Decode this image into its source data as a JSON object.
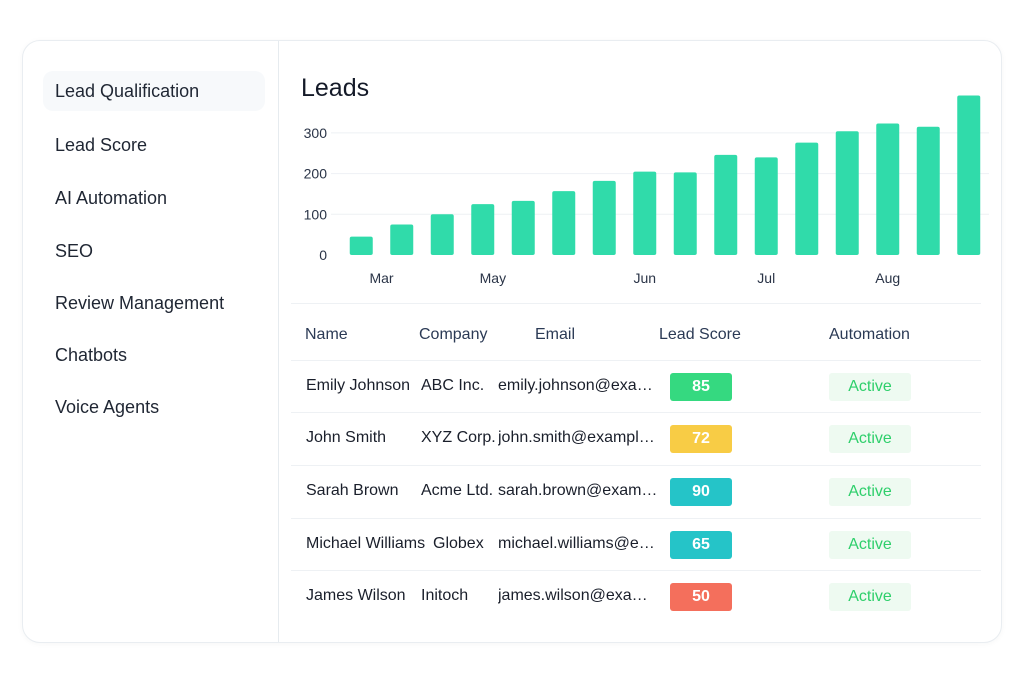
{
  "sidebar": {
    "items": [
      {
        "label": "Lead Qualification"
      },
      {
        "label": "Lead Score"
      },
      {
        "label": "AI Automation"
      },
      {
        "label": "SEO"
      },
      {
        "label": "Review Management"
      },
      {
        "label": "Chatbots"
      },
      {
        "label": "Voice Agents"
      }
    ]
  },
  "main": {
    "title": "Leads"
  },
  "chart_data": {
    "type": "bar",
    "title": "Leads",
    "bar_color": "#30dbaa",
    "grid": true,
    "ylim": [
      0,
      400
    ],
    "y_ticks": [
      0,
      100,
      200,
      300
    ],
    "x_tick_labels": [
      {
        "label": "Mar",
        "at": 0.5
      },
      {
        "label": "May",
        "at": 3.25
      },
      {
        "label": "Jun",
        "at": 7.0
      },
      {
        "label": "Jul",
        "at": 10.0
      },
      {
        "label": "Aug",
        "at": 13.0
      }
    ],
    "values": [
      45,
      75,
      100,
      125,
      133,
      157,
      182,
      205,
      203,
      246,
      240,
      276,
      304,
      323,
      315,
      392
    ]
  },
  "table": {
    "headers": {
      "name": "Name",
      "company": "Company",
      "email": "Email",
      "score": "Lead Score",
      "automation": "Automation"
    },
    "rows": [
      {
        "name": "Emily Johnson",
        "company": "ABC Inc.",
        "email": "emily.johnson@example.com",
        "score": "85",
        "score_color": "#35d980",
        "status": "Active"
      },
      {
        "name": "John Smith",
        "company": "XYZ Corp.",
        "email": "john.smith@example.com",
        "score": "72",
        "score_color": "#f8cc45",
        "status": "Active"
      },
      {
        "name": "Sarah Brown",
        "company": "Acme Ltd.",
        "email": "sarah.brown@example.com",
        "score": "90",
        "score_color": "#25c4c8",
        "status": "Active"
      },
      {
        "name": "Michael Williams",
        "company": "Globex",
        "email": "michael.williams@example.com",
        "score": "65",
        "score_color": "#25c4c8",
        "status": "Active"
      },
      {
        "name": "James Wilson",
        "company": "Initoch",
        "email": "james.wilson@example.com",
        "score": "50",
        "score_color": "#f46f5c",
        "status": "Active"
      }
    ]
  },
  "colors": {
    "active_text": "#2ecf6b",
    "active_bg": "#eefaf1"
  }
}
